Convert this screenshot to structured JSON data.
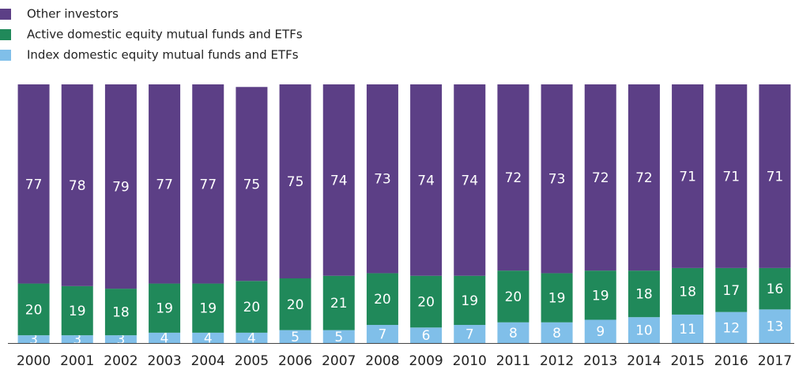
{
  "chart_data": {
    "type": "stacked_bar",
    "categories": [
      "2000",
      "2001",
      "2002",
      "2003",
      "2004",
      "2005",
      "2006",
      "2007",
      "2008",
      "2009",
      "2010",
      "2011",
      "2012",
      "2013",
      "2014",
      "2015",
      "2016",
      "2017"
    ],
    "series": [
      {
        "name": "Other investors",
        "color": "#5c3f86",
        "values": [
          77,
          78,
          79,
          77,
          77,
          75,
          75,
          74,
          73,
          74,
          74,
          72,
          73,
          72,
          72,
          71,
          71,
          71
        ]
      },
      {
        "name": "Active domestic equity mutual funds and ETFs",
        "color": "#20895a",
        "values": [
          20,
          19,
          18,
          19,
          19,
          20,
          20,
          21,
          20,
          20,
          19,
          20,
          19,
          19,
          18,
          18,
          17,
          16
        ]
      },
      {
        "name": "Index domestic equity mutual funds and ETFs",
        "color": "#80bfe9",
        "values": [
          3,
          3,
          3,
          4,
          4,
          4,
          5,
          5,
          7,
          6,
          7,
          8,
          8,
          9,
          10,
          11,
          12,
          13
        ]
      }
    ],
    "ylim": [
      0,
      100
    ],
    "legend": "top-left"
  }
}
